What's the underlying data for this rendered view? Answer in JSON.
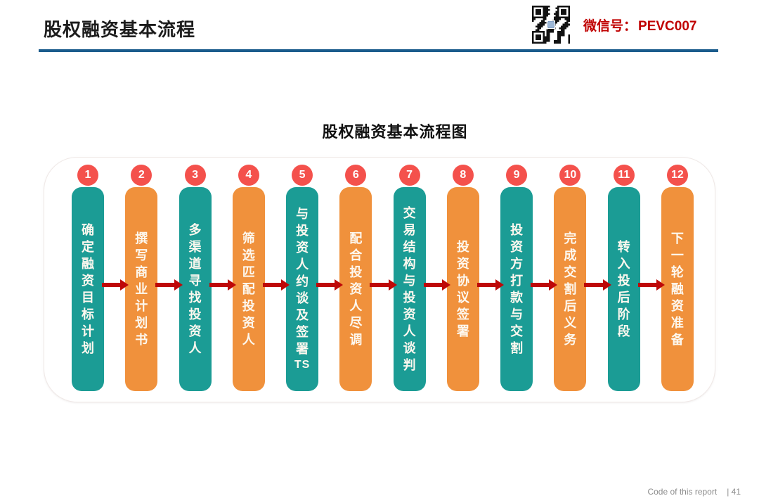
{
  "header": {
    "title": "股权融资基本流程",
    "wechat_label": "微信号：",
    "wechat_id": "PEVC007"
  },
  "diagram": {
    "title": "股权融资基本流程图",
    "steps": [
      {
        "num": "1",
        "label": "确定融资目标计划",
        "color": "teal"
      },
      {
        "num": "2",
        "label": "撰写商业计划书",
        "color": "orange"
      },
      {
        "num": "3",
        "label": "多渠道寻找投资人",
        "color": "teal"
      },
      {
        "num": "4",
        "label": "筛选匹配投资人",
        "color": "orange"
      },
      {
        "num": "5",
        "label": "与投资人约谈及签署TS",
        "color": "teal"
      },
      {
        "num": "6",
        "label": "配合投资人尽调",
        "color": "orange"
      },
      {
        "num": "7",
        "label": "交易结构与投资人谈判",
        "color": "teal"
      },
      {
        "num": "8",
        "label": "投资协议签署",
        "color": "orange"
      },
      {
        "num": "9",
        "label": "投资方打款与交割",
        "color": "teal"
      },
      {
        "num": "10",
        "label": "完成交割后义务",
        "color": "orange"
      },
      {
        "num": "11",
        "label": "转入投后阶段",
        "color": "teal"
      },
      {
        "num": "12",
        "label": "下一轮融资准备",
        "color": "orange"
      }
    ]
  },
  "footer": {
    "report_code_label": "Code  of  this  report",
    "page_number": "| 41"
  },
  "colors": {
    "teal": "#1B9C95",
    "orange": "#F0913C",
    "step_circle": "#F4514C",
    "arrow": "#BE0808",
    "header_line": "#1B5C8C",
    "wechat_text": "#C00000",
    "bar_text": "#FDF8EF"
  }
}
